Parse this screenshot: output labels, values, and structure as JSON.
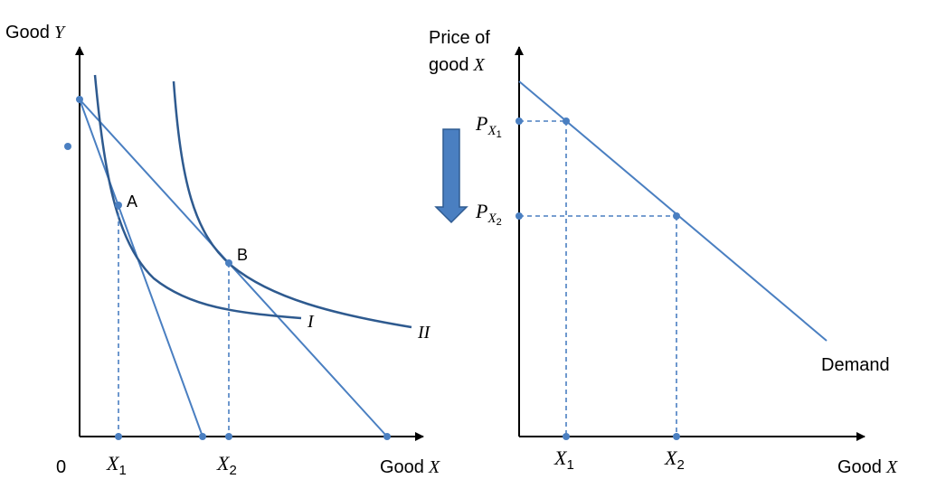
{
  "left_panel": {
    "y_axis_label": "Good",
    "y_axis_var": "Y",
    "x_axis_label": "Good",
    "x_axis_var": "X",
    "origin_label": "0",
    "tick_x1": {
      "var": "X",
      "sub": "1"
    },
    "tick_x2": {
      "var": "X",
      "sub": "2"
    },
    "point_a_label": "A",
    "point_b_label": "B",
    "curve_i_label": "I",
    "curve_ii_label": "II"
  },
  "right_panel": {
    "y_axis_label_line1": "Price of",
    "y_axis_label_line2": "good",
    "y_axis_var": "X",
    "x_axis_label": "Good",
    "x_axis_var": "X",
    "price1": {
      "var": "P",
      "sub": "X",
      "subsub": "1"
    },
    "price2": {
      "var": "P",
      "sub": "X",
      "subsub": "2"
    },
    "tick_x1": {
      "var": "X",
      "sub": "1"
    },
    "tick_x2": {
      "var": "X",
      "sub": "2"
    },
    "demand_label": "Demand"
  },
  "colors": {
    "line": "#4a7fc1",
    "curve": "#2e5a8f",
    "axis": "#000000",
    "arrow_fill": "#4a7fc1",
    "arrow_stroke": "#2f5b91"
  }
}
